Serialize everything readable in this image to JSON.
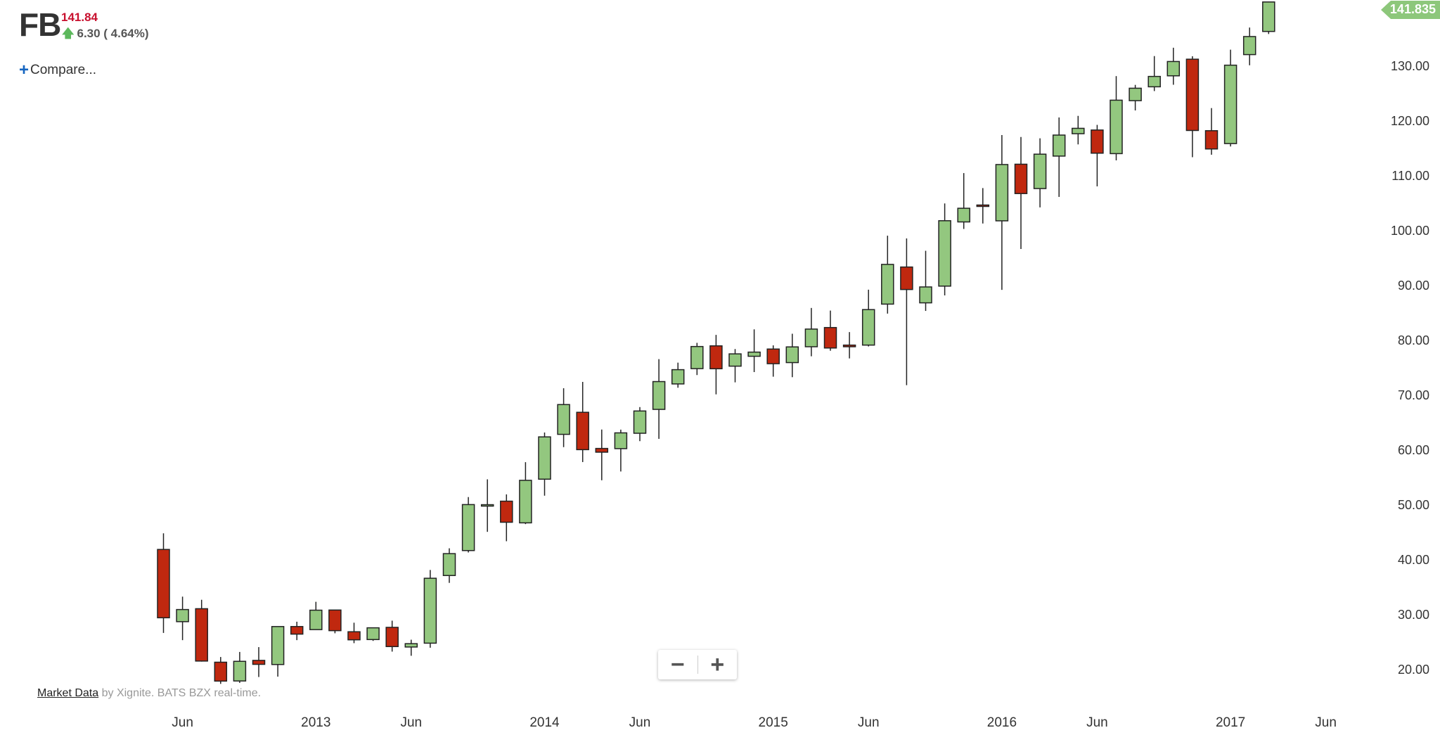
{
  "header": {
    "symbol": "FB",
    "price": "141.84",
    "change": "6.30 ( 4.64%)",
    "compare": "Compare..."
  },
  "footer": {
    "link": "Market Data",
    "text": "by Xignite. BATS BZX real-time."
  },
  "chart_data": {
    "type": "candlestick",
    "categories": [
      null,
      "Jun",
      null,
      null,
      null,
      null,
      null,
      null,
      "2013",
      null,
      null,
      null,
      null,
      "Jun",
      null,
      null,
      null,
      null,
      null,
      null,
      "2014",
      null,
      null,
      null,
      null,
      "Jun",
      null,
      null,
      null,
      null,
      null,
      null,
      "2015",
      null,
      null,
      null,
      null,
      "Jun",
      null,
      null,
      null,
      null,
      null,
      null,
      "2016",
      null,
      null,
      null,
      null,
      "Jun",
      null,
      null,
      null,
      null,
      null,
      null,
      "2017",
      null,
      null,
      null,
      null,
      "Jun"
    ],
    "open": [
      42.05,
      28.89,
      31.25,
      21.5,
      18.08,
      21.83,
      21.08,
      28.0,
      27.44,
      31.01,
      27.05,
      25.63,
      27.85,
      24.27,
      24.97,
      37.3,
      41.85,
      50.02,
      50.85,
      46.9,
      54.86,
      63.03,
      67.05,
      60.46,
      60.43,
      63.23,
      67.58,
      72.22,
      75.01,
      79.16,
      75.46,
      77.26,
      78.58,
      76.11,
      79.0,
      82.5,
      79.3,
      79.3,
      86.77,
      93.53,
      87.0,
      90.05,
      101.75,
      104.83,
      101.95,
      112.27,
      107.83,
      113.75,
      117.83,
      118.5,
      114.2,
      123.85,
      126.38,
      128.38,
      131.41,
      118.38,
      116.03,
      132.25,
      136.47,
      null,
      null,
      null
    ],
    "high": [
      45.0,
      33.45,
      32.88,
      22.45,
      23.37,
      24.25,
      28.0,
      28.88,
      32.51,
      31.02,
      28.7,
      27.77,
      29.07,
      25.6,
      38.31,
      42.26,
      51.6,
      54.83,
      52.09,
      57.96,
      63.37,
      71.44,
      72.59,
      63.91,
      63.89,
      68.0,
      76.74,
      76.1,
      79.71,
      81.16,
      78.58,
      82.17,
      79.25,
      81.37,
      86.07,
      85.59,
      81.67,
      89.4,
      99.24,
      98.74,
      96.49,
      105.12,
      110.65,
      107.92,
      117.59,
      117.23,
      116.99,
      120.79,
      121.08,
      119.44,
      128.33,
      126.73,
      131.98,
      133.5,
      131.94,
      122.5,
      133.14,
      137.18,
      141.9,
      null,
      null,
      null
    ],
    "low": [
      26.83,
      25.52,
      21.61,
      17.55,
      17.73,
      18.8,
      18.87,
      25.52,
      27.42,
      26.77,
      24.97,
      25.38,
      23.43,
      22.67,
      24.14,
      35.96,
      41.5,
      45.26,
      43.55,
      46.67,
      51.85,
      60.7,
      57.98,
      54.66,
      56.26,
      61.79,
      62.21,
      71.53,
      73.84,
      70.32,
      72.51,
      74.38,
      73.54,
      73.45,
      77.26,
      78.27,
      76.87,
      79.05,
      85.04,
      72.0,
      85.53,
      88.36,
      100.47,
      101.46,
      89.37,
      96.82,
      104.4,
      106.31,
      115.88,
      108.23,
      112.97,
      122.07,
      125.6,
      126.75,
      113.55,
      114.0,
      115.51,
      130.3,
      136.0,
      null,
      null,
      null
    ],
    "close": [
      29.6,
      31.1,
      21.71,
      18.06,
      21.66,
      21.11,
      28.0,
      26.62,
      30.98,
      27.25,
      25.58,
      27.77,
      24.35,
      24.88,
      36.8,
      41.29,
      50.23,
      50.21,
      47.01,
      54.65,
      62.57,
      68.46,
      60.24,
      59.78,
      63.3,
      67.29,
      72.65,
      74.82,
      79.04,
      74.99,
      77.7,
      78.02,
      75.91,
      78.97,
      82.22,
      78.77,
      79.0,
      85.77,
      94.01,
      89.43,
      89.9,
      101.97,
      104.24,
      104.66,
      112.21,
      106.92,
      114.1,
      117.58,
      118.81,
      114.28,
      123.94,
      126.12,
      128.27,
      130.99,
      118.42,
      115.05,
      130.32,
      135.54,
      141.84,
      null,
      null,
      null
    ],
    "up_color": "#93c77f",
    "down_color": "#c0280f",
    "last_price": 141.835,
    "last_price_color": "#8dc77b",
    "ylim": [
      14,
      142.2
    ],
    "yticks": [
      {
        "value": 20,
        "label": "20.00"
      },
      {
        "value": 30,
        "label": "30.00"
      },
      {
        "value": 40,
        "label": "40.00"
      },
      {
        "value": 50,
        "label": "50.00"
      },
      {
        "value": 60,
        "label": "60.00"
      },
      {
        "value": 70,
        "label": "70.00"
      },
      {
        "value": 80,
        "label": "80.00"
      },
      {
        "value": 90,
        "label": "90.00"
      },
      {
        "value": 100,
        "label": "100.00"
      },
      {
        "value": 110,
        "label": "110.00"
      },
      {
        "value": 120,
        "label": "120.00"
      },
      {
        "value": 130,
        "label": "130.00"
      }
    ],
    "grid": false
  }
}
